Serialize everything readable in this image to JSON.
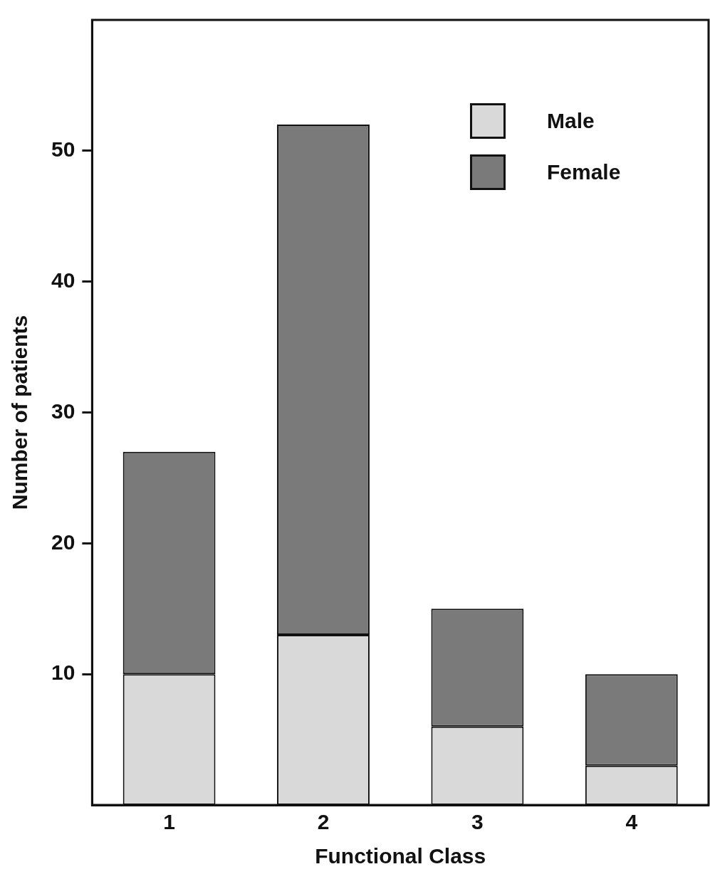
{
  "chart_data": {
    "type": "bar",
    "stacked": true,
    "xlabel": "Functional Class",
    "ylabel": "Number of patients",
    "categories": [
      "1",
      "2",
      "3",
      "4"
    ],
    "series": [
      {
        "name": "Male",
        "color": "#d9d9d9",
        "values": [
          10,
          13,
          6,
          3
        ]
      },
      {
        "name": "Female",
        "color": "#7a7a7a",
        "values": [
          17,
          39,
          9,
          7
        ]
      }
    ],
    "ylim": [
      0,
      60
    ],
    "yticks": [
      10,
      20,
      30,
      40,
      50
    ],
    "grid": false,
    "legend": "top right"
  }
}
